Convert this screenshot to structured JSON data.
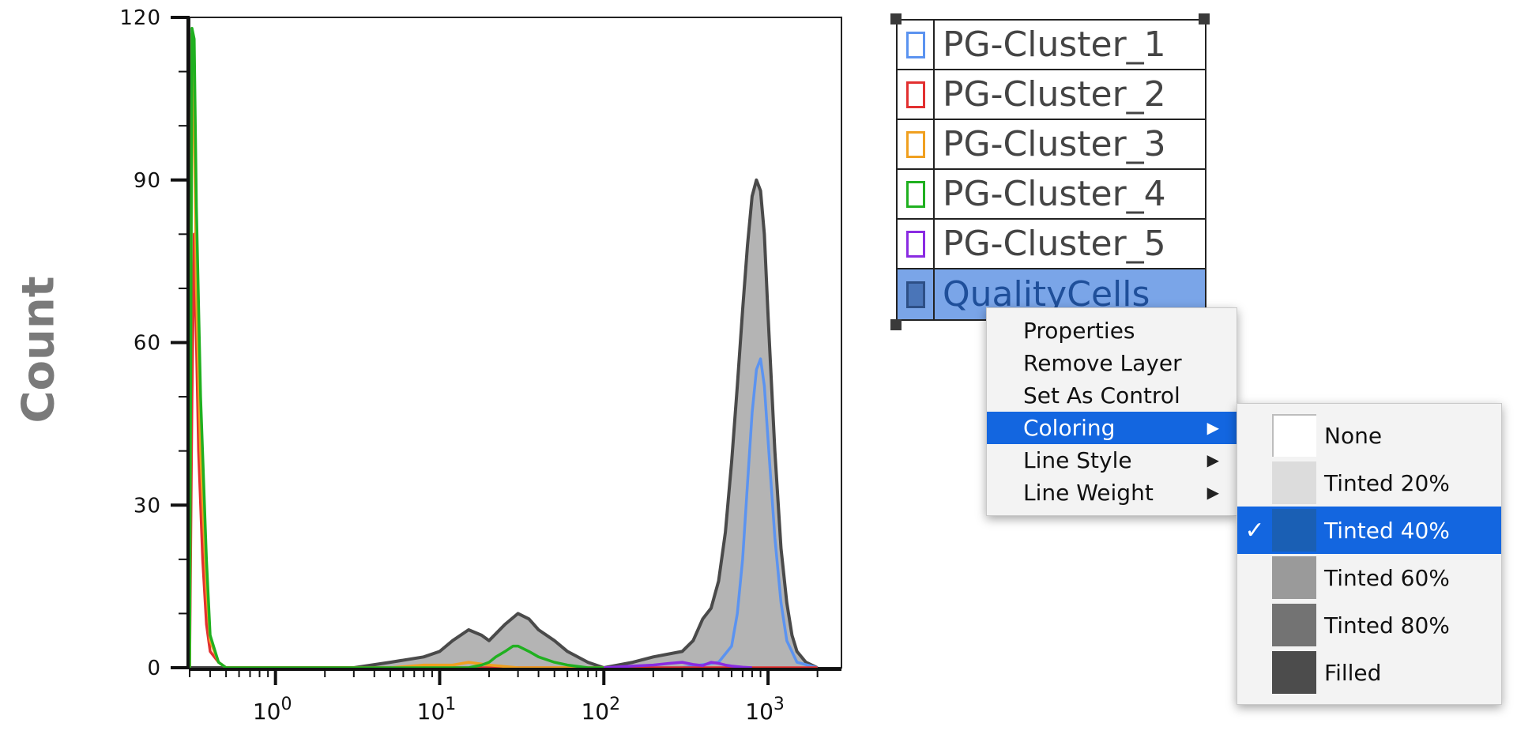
{
  "chart_data": {
    "type": "line",
    "title": "",
    "xlabel": "",
    "ylabel": "Count",
    "x_scale": "log",
    "ylim": [
      0,
      120
    ],
    "y_ticks": [
      "0",
      "30",
      "60",
      "90",
      "120"
    ],
    "x_ticks": [
      {
        "base": "10",
        "exp": "0"
      },
      {
        "base": "10",
        "exp": "1"
      },
      {
        "base": "10",
        "exp": "2"
      },
      {
        "base": "10",
        "exp": "3"
      }
    ],
    "series": [
      {
        "name": "QualityCells",
        "color": "#4a4a4a",
        "fill": "#b4b4b4",
        "x": [
          0.3,
          3,
          5,
          8,
          10,
          12,
          15,
          18,
          20,
          25,
          30,
          35,
          40,
          50,
          60,
          80,
          100,
          150,
          200,
          300,
          350,
          400,
          450,
          500,
          550,
          600,
          650,
          700,
          750,
          800,
          850,
          900,
          950,
          1000,
          1100,
          1200,
          1300,
          1400,
          1500,
          1700,
          2000
        ],
        "y": [
          0,
          0,
          1,
          2,
          3,
          5,
          7,
          6,
          5,
          8,
          10,
          9,
          7,
          5,
          3,
          1,
          0,
          1,
          2,
          3,
          5,
          9,
          11,
          16,
          25,
          38,
          52,
          66,
          78,
          87,
          90,
          88,
          80,
          65,
          40,
          22,
          12,
          6,
          3,
          1,
          0
        ]
      },
      {
        "name": "PG-Cluster_1",
        "color": "#5b93f0",
        "x": [
          100,
          300,
          500,
          600,
          650,
          700,
          750,
          800,
          850,
          900,
          950,
          1000,
          1100,
          1200,
          1300,
          1500,
          2000
        ],
        "y": [
          0,
          0,
          1,
          4,
          10,
          20,
          34,
          47,
          55,
          57,
          52,
          42,
          24,
          12,
          5,
          1,
          0
        ]
      },
      {
        "name": "PG-Cluster_2",
        "color": "#e23030",
        "x": [
          0.3,
          0.31,
          0.32,
          0.33,
          0.34,
          0.36,
          0.38,
          0.4,
          0.45,
          0.5,
          0.6,
          1,
          10,
          100,
          1000,
          2000
        ],
        "y": [
          0,
          50,
          80,
          60,
          40,
          20,
          8,
          3,
          1,
          0,
          0,
          0,
          0,
          0,
          0,
          0
        ]
      },
      {
        "name": "PG-Cluster_3",
        "color": "#f0a020",
        "x": [
          0.3,
          0.31,
          0.32,
          0.33,
          0.35,
          0.38,
          0.4,
          0.45,
          0.5,
          5,
          8,
          12,
          15,
          20,
          30,
          100
        ],
        "y": [
          0,
          117,
          100,
          70,
          40,
          15,
          5,
          1,
          0,
          0,
          0.5,
          0.5,
          1,
          0.5,
          0,
          0
        ]
      },
      {
        "name": "PG-Cluster_4",
        "color": "#20b020",
        "x": [
          0.3,
          0.31,
          0.32,
          0.33,
          0.35,
          0.38,
          0.4,
          0.45,
          0.5,
          15,
          18,
          20,
          22,
          25,
          28,
          30,
          35,
          40,
          50,
          60,
          80,
          100
        ],
        "y": [
          0,
          118,
          116,
          85,
          50,
          20,
          6,
          1,
          0,
          0,
          0.5,
          1,
          2,
          3,
          4,
          4,
          3,
          2,
          1,
          0.5,
          0,
          0
        ]
      },
      {
        "name": "PG-Cluster_5",
        "color": "#8a2be2",
        "x": [
          100,
          150,
          200,
          250,
          300,
          350,
          400,
          450,
          500,
          550,
          600,
          700,
          800
        ],
        "y": [
          0,
          0.3,
          0.5,
          0.8,
          1,
          0.6,
          0.4,
          1,
          0.8,
          0.5,
          0.3,
          0.1,
          0
        ]
      }
    ]
  },
  "legend": {
    "items": [
      {
        "label": "PG-Cluster_1",
        "color": "#5b93f0"
      },
      {
        "label": "PG-Cluster_2",
        "color": "#e23030"
      },
      {
        "label": "PG-Cluster_3",
        "color": "#f0a020"
      },
      {
        "label": "PG-Cluster_4",
        "color": "#20b020"
      },
      {
        "label": "PG-Cluster_5",
        "color": "#8a2be2"
      },
      {
        "label": "QualityCells",
        "color": "#2d4f86",
        "fill": "#4a75b8",
        "selected": true
      }
    ]
  },
  "context_menu": {
    "items": [
      {
        "label": "Properties",
        "submenu": false
      },
      {
        "label": "Remove Layer",
        "submenu": false
      },
      {
        "label": "Set As Control",
        "submenu": false
      },
      {
        "label": "Coloring",
        "submenu": true,
        "highlighted": true
      },
      {
        "label": "Line Style",
        "submenu": true
      },
      {
        "label": "Line Weight",
        "submenu": true
      }
    ],
    "arrow_glyph": "▶"
  },
  "coloring_submenu": {
    "items": [
      {
        "label": "None",
        "swatch": "#ffffff",
        "checked": false
      },
      {
        "label": "Tinted 20%",
        "swatch": "#dcdcdc",
        "checked": false
      },
      {
        "label": "Tinted 40%",
        "swatch": "#1a5fb4",
        "checked": true
      },
      {
        "label": "Tinted 60%",
        "swatch": "#9a9a9a",
        "checked": false
      },
      {
        "label": "Tinted 80%",
        "swatch": "#737373",
        "checked": false
      },
      {
        "label": "Filled",
        "swatch": "#4c4c4c",
        "checked": false
      }
    ],
    "check_glyph": "✓"
  }
}
